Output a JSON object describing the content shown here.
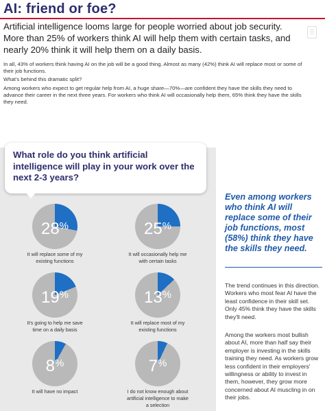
{
  "title": "AI: friend or foe?",
  "lead": "Artificial intelligence looms large for people worried about job security. More than 25% of workers think AI will help them with certain tasks, and nearly 20% think it will help them on a daily basis.",
  "paragraphs": [
    "In all, 43% of workers think having AI on the job will be a good thing. Almost as many (42%) think AI will replace most or some of their job functions.",
    "What's behind this dramatic split?",
    "Among workers who expect to get regular help from AI, a huge share—70%—are confident they have the skills they need to advance their career in the next three years. For workers who think AI will occasionally help them, 65% think they have the skills they need."
  ],
  "question": "What role do you think artificial intelligence will play in your work over the next 2-3 years?",
  "colors": {
    "accent_blue": "#1f6fc4",
    "pie_gray": "#b9b9b9",
    "title_navy": "#2d2d6e",
    "rule_red": "#c8102e"
  },
  "chart_data": {
    "type": "pie",
    "series": [
      {
        "label": "It will replace some of my existing functions",
        "percent": 28,
        "display": "28"
      },
      {
        "label": "It will occasionally help me with certain tasks",
        "percent": 25,
        "display": "25"
      },
      {
        "label": "It's going to help me save time on a daily basis",
        "percent": 19,
        "display": "19"
      },
      {
        "label": "It will replace most of my existing functions",
        "percent": 13,
        "display": "13"
      },
      {
        "label": "It will have no impact",
        "percent": 8,
        "display": "8"
      },
      {
        "label": "I do not know enough about artificial intelligence to make a selection",
        "percent": 7,
        "display": "7"
      }
    ],
    "unit_symbol": "%"
  },
  "callout": "Even among workers who think AI will replace some of their job functions, most (58%) think they have the skills they need.",
  "side_paragraphs": [
    "The trend continues in this direction. Workers who most fear AI have the least confidence in their skill set. Only 45% think they have the skills they'll need.",
    "Among the workers most bullish about AI, more than half say their employer is investing in the skills training they need. As workers grow less confident in their employers' willingness or ability to invest in them, however, they grow more concerned about AI muscling in on their jobs."
  ]
}
